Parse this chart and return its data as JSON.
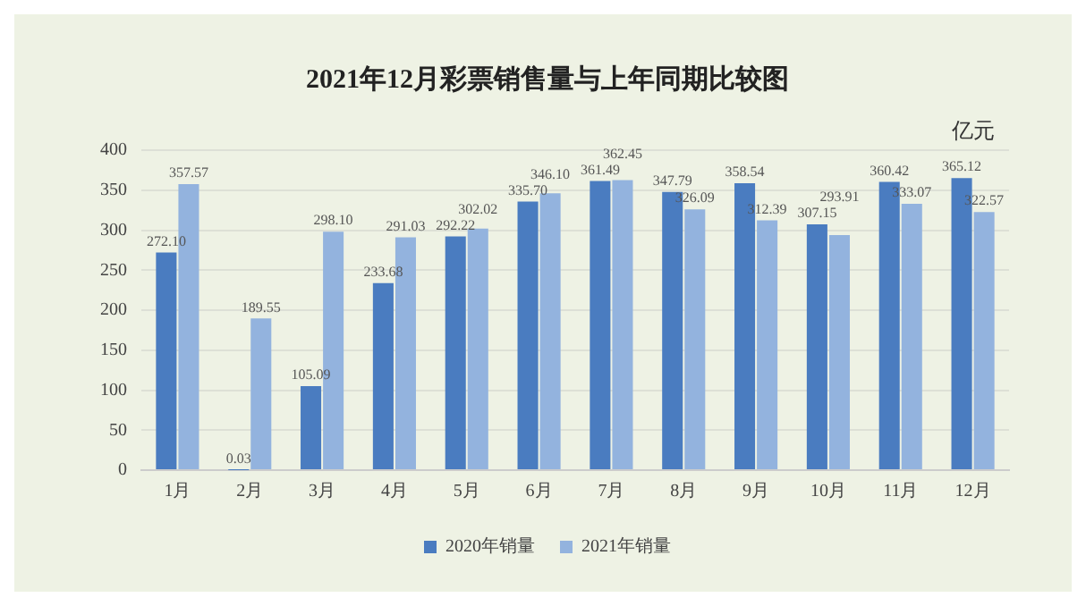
{
  "chart_data": {
    "type": "bar",
    "title": "2021年12月彩票销售量与上年同期比较图",
    "ylabel": "亿元",
    "categories": [
      "1月",
      "2月",
      "3月",
      "4月",
      "5月",
      "6月",
      "7月",
      "8月",
      "9月",
      "10月",
      "11月",
      "12月"
    ],
    "series": [
      {
        "name": "2020年销量",
        "color": "#4a7cc0",
        "values": [
          272.1,
          0.03,
          105.09,
          233.68,
          292.22,
          335.7,
          361.49,
          347.79,
          358.54,
          307.15,
          360.42,
          365.12
        ],
        "value_labels": [
          "272.10",
          "0.03",
          "105.09",
          "233.68",
          "292.22",
          "335.70",
          "361.49",
          "347.79",
          "358.54",
          "307.15",
          "360.42",
          "365.12"
        ]
      },
      {
        "name": "2021年销量",
        "color": "#93b3de",
        "values": [
          357.57,
          189.55,
          298.1,
          291.03,
          302.02,
          346.1,
          362.45,
          326.09,
          312.39,
          293.91,
          333.07,
          322.57
        ],
        "value_labels": [
          "357.57",
          "189.55",
          "298.10",
          "291.03",
          "302.02",
          "346.10",
          "362.45",
          "326.09",
          "312.39",
          "293.91",
          "333.07",
          "322.57"
        ]
      }
    ],
    "ylim": [
      0,
      400
    ],
    "yticks": [
      0,
      50,
      100,
      150,
      200,
      250,
      300,
      350,
      400
    ],
    "grid": "y",
    "legend": "bottom"
  }
}
